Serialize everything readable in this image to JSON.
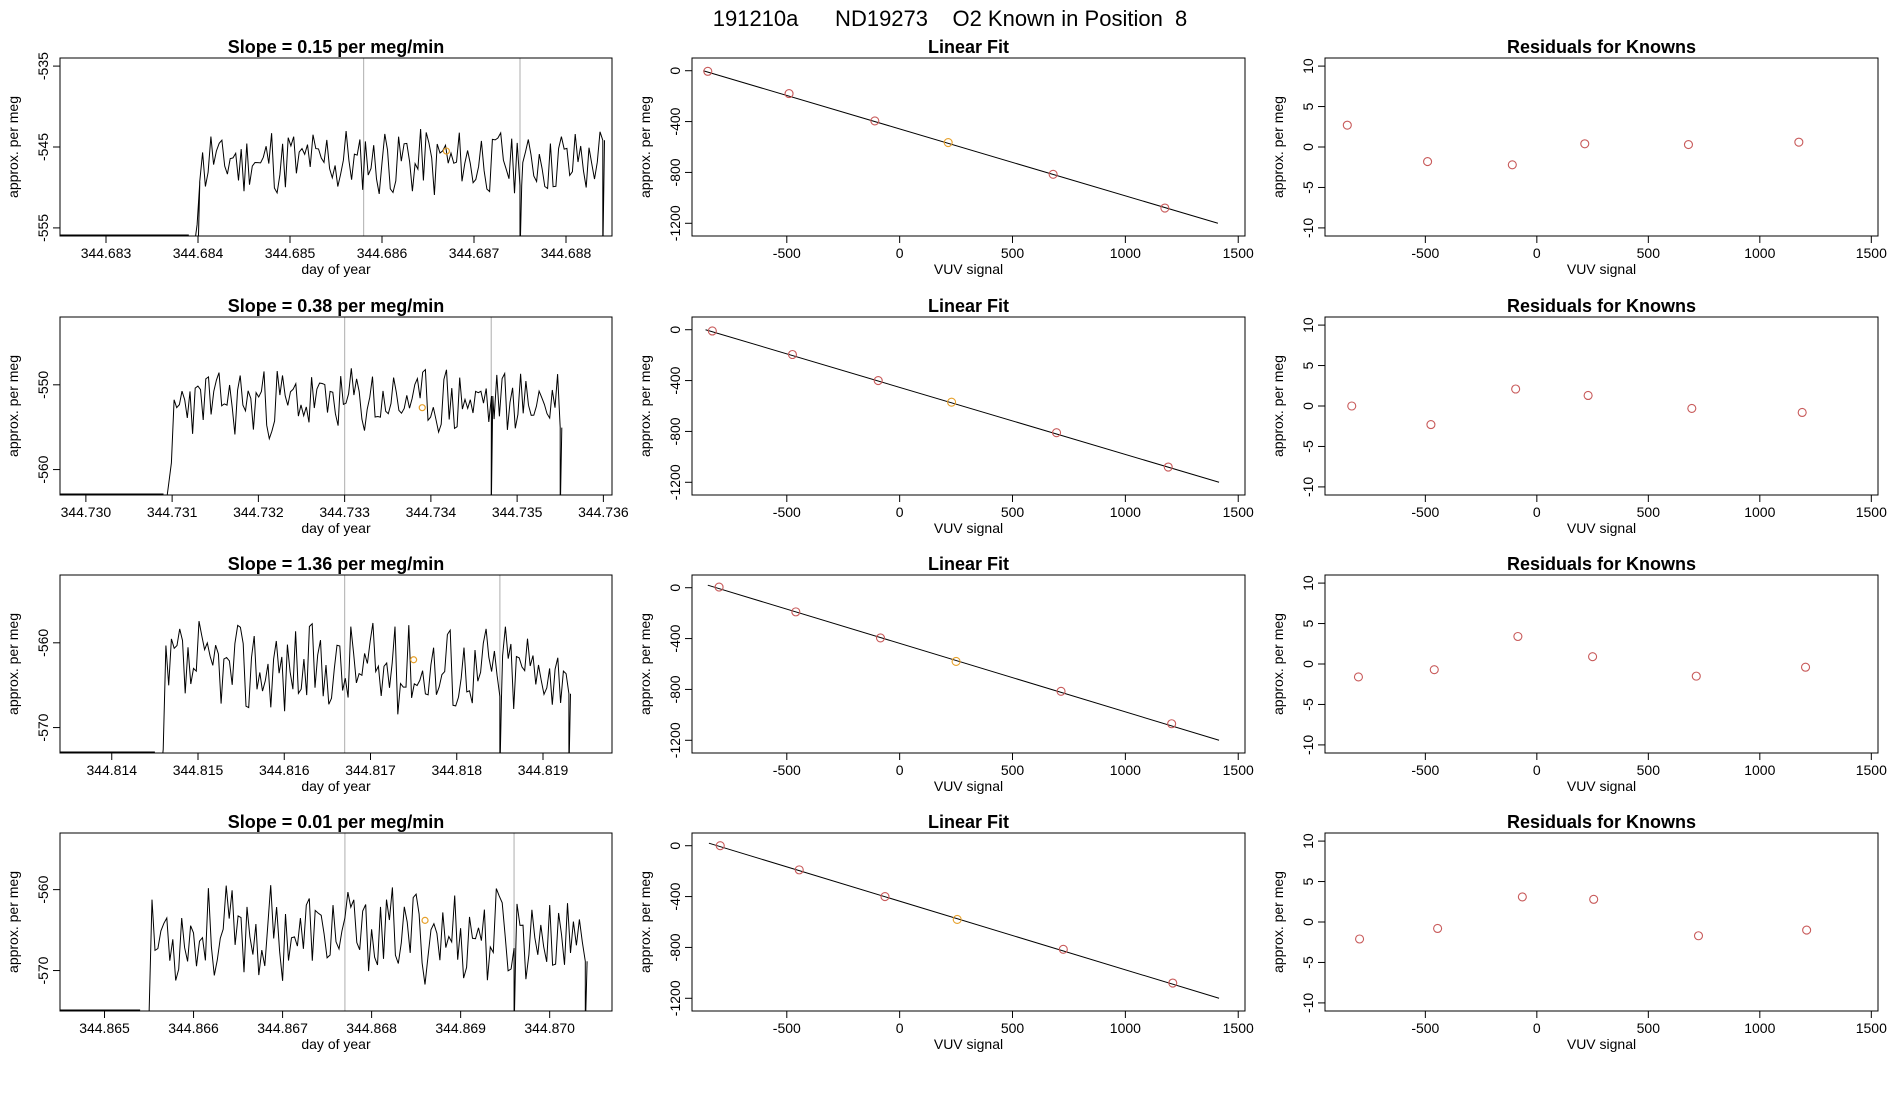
{
  "page_title": "191210a      ND19273    O2 Known in Position  8",
  "colors": {
    "trace": "#000000",
    "reference": "#bbbbbb",
    "known": "#c85a5a",
    "highlight": "#e6a02a",
    "fit": "#000000",
    "frame": "#000000"
  },
  "chart_data": [
    {
      "type": "line",
      "row": 1,
      "col": 1,
      "title": "Slope =  0.15  per meg/min",
      "xlabel": "day of year",
      "ylabel": "approx. per meg",
      "xlim": [
        344.6825,
        344.6885
      ],
      "ylim": [
        -556,
        -534
      ],
      "x_ticks": [
        "344.683",
        "344.684",
        "344.685",
        "344.686",
        "344.687",
        "344.688"
      ],
      "y_ticks": [
        "-535",
        "-545",
        "-555"
      ],
      "vlines": [
        344.6858,
        344.6875
      ],
      "trace_start": 344.6839,
      "trace_end": 344.6884,
      "trace_base": -546.8,
      "trace_amp": 2.6,
      "seed": 11,
      "drops": [
        344.684,
        344.6875,
        344.6884
      ],
      "highlight_point": [
        344.6867,
        -545.5
      ]
    },
    {
      "type": "scatter",
      "row": 1,
      "col": 2,
      "title": "Linear Fit",
      "xlabel": "VUV signal",
      "ylabel": "approx. per meg",
      "xlim": [
        -920,
        1530
      ],
      "ylim": [
        -1300,
        100
      ],
      "x_ticks": [
        "-500",
        "0",
        "500",
        "1000",
        "1500"
      ],
      "y_ticks": [
        "0",
        "-400",
        "-800",
        "-1200"
      ],
      "x": [
        -850,
        -490,
        -110,
        215,
        680,
        1175
      ],
      "y": [
        -5,
        -180,
        -395,
        -565,
        -815,
        -1080
      ],
      "highlight_index": 3,
      "fit_line": [
        [
          -870,
          0
        ],
        [
          1410,
          -1200
        ]
      ]
    },
    {
      "type": "scatter",
      "row": 1,
      "col": 3,
      "title": "Residuals for Knowns",
      "xlabel": "VUV signal",
      "ylabel": "approx. per meg",
      "xlim": [
        -950,
        1530
      ],
      "ylim": [
        -11,
        11
      ],
      "x_ticks": [
        "-500",
        "0",
        "500",
        "1000",
        "1500"
      ],
      "y_ticks": [
        "10",
        "5",
        "0",
        "-5",
        "-10"
      ],
      "x": [
        -850,
        -490,
        -110,
        215,
        680,
        1175
      ],
      "y": [
        2.7,
        -1.8,
        -2.2,
        0.4,
        0.3,
        0.6
      ]
    },
    {
      "type": "line",
      "row": 2,
      "col": 1,
      "title": "Slope =  0.38  per meg/min",
      "xlabel": "day of year",
      "ylabel": "approx. per meg",
      "xlim": [
        344.7297,
        344.7361
      ],
      "ylim": [
        -563,
        -542
      ],
      "x_ticks": [
        "344.730",
        "344.731",
        "344.732",
        "344.733",
        "344.734",
        "344.735",
        "344.736"
      ],
      "y_ticks": [
        "-550",
        "-560"
      ],
      "vlines": [
        344.733,
        344.7347
      ],
      "trace_start": 344.7309,
      "trace_end": 344.7355,
      "trace_base": -552.0,
      "trace_amp": 2.4,
      "seed": 23,
      "drops": [
        344.7309,
        344.7347,
        344.7355
      ],
      "highlight_point": [
        344.7339,
        -552.7
      ]
    },
    {
      "type": "scatter",
      "row": 2,
      "col": 2,
      "title": "Linear Fit",
      "xlabel": "VUV signal",
      "ylabel": "approx. per meg",
      "xlim": [
        -920,
        1530
      ],
      "ylim": [
        -1300,
        100
      ],
      "x_ticks": [
        "-500",
        "0",
        "500",
        "1000",
        "1500"
      ],
      "y_ticks": [
        "0",
        "-400",
        "-800",
        "-1200"
      ],
      "x": [
        -830,
        -475,
        -95,
        230,
        695,
        1190
      ],
      "y": [
        -10,
        -195,
        -400,
        -570,
        -810,
        -1080
      ],
      "highlight_index": 3,
      "fit_line": [
        [
          -860,
          0
        ],
        [
          1415,
          -1200
        ]
      ]
    },
    {
      "type": "scatter",
      "row": 2,
      "col": 3,
      "title": "Residuals for Knowns",
      "xlabel": "VUV signal",
      "ylabel": "approx. per meg",
      "xlim": [
        -950,
        1530
      ],
      "ylim": [
        -11,
        11
      ],
      "x_ticks": [
        "-500",
        "0",
        "500",
        "1000",
        "1500"
      ],
      "y_ticks": [
        "10",
        "5",
        "0",
        "-5",
        "-10"
      ],
      "x": [
        -830,
        -475,
        -95,
        230,
        695,
        1190
      ],
      "y": [
        0.0,
        -2.3,
        2.1,
        1.3,
        -0.3,
        -0.8
      ]
    },
    {
      "type": "line",
      "row": 3,
      "col": 1,
      "title": "Slope =  1.36  per meg/min",
      "xlabel": "day of year",
      "ylabel": "approx. per meg",
      "xlim": [
        344.8134,
        344.8198
      ],
      "ylim": [
        -573,
        -552
      ],
      "x_ticks": [
        "344.814",
        "344.815",
        "344.816",
        "344.817",
        "344.818",
        "344.819"
      ],
      "y_ticks": [
        "-560",
        "-570"
      ],
      "vlines": [
        344.8167,
        344.8185
      ],
      "trace_start": 344.8145,
      "trace_end": 344.8193,
      "trace_base": -563.0,
      "trace_amp": 3.2,
      "seed": 37,
      "drops": [
        344.8145,
        344.8185,
        344.8193
      ],
      "highlight_point": [
        344.8175,
        -562.0
      ]
    },
    {
      "type": "scatter",
      "row": 3,
      "col": 2,
      "title": "Linear Fit",
      "xlabel": "VUV signal",
      "ylabel": "approx. per meg",
      "xlim": [
        -920,
        1530
      ],
      "ylim": [
        -1300,
        100
      ],
      "x_ticks": [
        "-500",
        "0",
        "500",
        "1000",
        "1500"
      ],
      "y_ticks": [
        "0",
        "-400",
        "-800",
        "-1200"
      ],
      "x": [
        -800,
        -460,
        -85,
        250,
        715,
        1205
      ],
      "y": [
        5,
        -190,
        -395,
        -580,
        -815,
        -1070
      ],
      "highlight_index": 3,
      "fit_line": [
        [
          -850,
          20
        ],
        [
          1415,
          -1200
        ]
      ]
    },
    {
      "type": "scatter",
      "row": 3,
      "col": 3,
      "title": "Residuals for Knowns",
      "xlabel": "VUV signal",
      "ylabel": "approx. per meg",
      "xlim": [
        -950,
        1530
      ],
      "ylim": [
        -11,
        11
      ],
      "x_ticks": [
        "-500",
        "0",
        "500",
        "1000",
        "1500"
      ],
      "y_ticks": [
        "10",
        "5",
        "0",
        "-5",
        "-10"
      ],
      "x": [
        -800,
        -460,
        -85,
        250,
        715,
        1205
      ],
      "y": [
        -1.6,
        -0.7,
        3.4,
        0.9,
        -1.5,
        -0.4
      ]
    },
    {
      "type": "line",
      "row": 4,
      "col": 1,
      "title": "Slope =  0.01  per meg/min",
      "xlabel": "day of year",
      "ylabel": "approx. per meg",
      "xlim": [
        344.8645,
        344.8707
      ],
      "ylim": [
        -575,
        -553
      ],
      "x_ticks": [
        "344.865",
        "344.866",
        "344.867",
        "344.868",
        "344.869",
        "344.870"
      ],
      "y_ticks": [
        "-560",
        "-570"
      ],
      "vlines": [
        344.8677,
        344.8696
      ],
      "trace_start": 344.8654,
      "trace_end": 344.8704,
      "trace_base": -565.5,
      "trace_amp": 3.4,
      "seed": 53,
      "drops": [
        344.8654,
        344.8696,
        344.8704
      ],
      "highlight_point": [
        344.8686,
        -563.8
      ]
    },
    {
      "type": "scatter",
      "row": 4,
      "col": 2,
      "title": "Linear Fit",
      "xlabel": "VUV signal",
      "ylabel": "approx. per meg",
      "xlim": [
        -920,
        1530
      ],
      "ylim": [
        -1300,
        100
      ],
      "x_ticks": [
        "-500",
        "0",
        "500",
        "1000",
        "1500"
      ],
      "y_ticks": [
        "0",
        "-400",
        "-800",
        "-1200"
      ],
      "x": [
        -795,
        -445,
        -65,
        255,
        725,
        1210
      ],
      "y": [
        0,
        -190,
        -400,
        -580,
        -815,
        -1080
      ],
      "highlight_index": 3,
      "fit_line": [
        [
          -845,
          20
        ],
        [
          1415,
          -1200
        ]
      ]
    },
    {
      "type": "scatter",
      "row": 4,
      "col": 3,
      "title": "Residuals for Knowns",
      "xlabel": "VUV signal",
      "ylabel": "approx. per meg",
      "xlim": [
        -950,
        1530
      ],
      "ylim": [
        -11,
        11
      ],
      "x_ticks": [
        "-500",
        "0",
        "500",
        "1000",
        "1500"
      ],
      "y_ticks": [
        "10",
        "5",
        "0",
        "-5",
        "-10"
      ],
      "x": [
        -795,
        -445,
        -65,
        255,
        725,
        1210
      ],
      "y": [
        -2.1,
        -0.8,
        3.1,
        2.8,
        -1.7,
        -1.0
      ]
    }
  ]
}
